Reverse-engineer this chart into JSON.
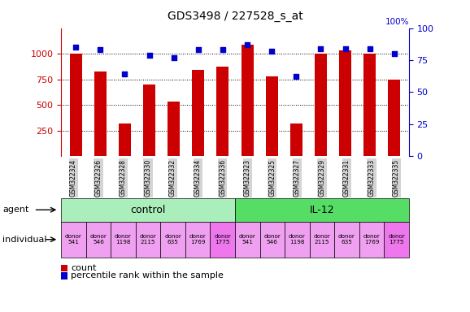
{
  "title": "GDS3498 / 227528_s_at",
  "samples": [
    "GSM322324",
    "GSM322326",
    "GSM322328",
    "GSM322330",
    "GSM322332",
    "GSM322334",
    "GSM322336",
    "GSM322323",
    "GSM322325",
    "GSM322327",
    "GSM322329",
    "GSM322331",
    "GSM322333",
    "GSM322335"
  ],
  "counts": [
    1000,
    825,
    320,
    700,
    535,
    840,
    870,
    1090,
    780,
    320,
    1000,
    1030,
    1000,
    750
  ],
  "percentile_ranks": [
    85,
    83,
    64,
    79,
    77,
    83,
    83,
    87,
    82,
    62,
    84,
    84,
    84,
    80
  ],
  "ylim_left": [
    0,
    1250
  ],
  "ylim_right": [
    0,
    100
  ],
  "yticks_left": [
    250,
    500,
    750,
    1000
  ],
  "yticks_right": [
    0,
    25,
    50,
    75,
    100
  ],
  "bar_color": "#cc0000",
  "dot_color": "#0000cc",
  "agent_control_color": "#aaeebb",
  "agent_il12_color": "#55dd66",
  "individual_control_colors": [
    "#f0a0f0",
    "#f0a0f0",
    "#f0a0f0",
    "#f0a0f0",
    "#f0a0f0",
    "#f0a0f0",
    "#ee77ee"
  ],
  "individual_il12_colors": [
    "#f0a0f0",
    "#f0a0f0",
    "#f0a0f0",
    "#f0a0f0",
    "#f0a0f0",
    "#f0a0f0",
    "#ee77ee"
  ],
  "donors": [
    "donor\n541",
    "donor\n546",
    "donor\n1198",
    "donor\n2115",
    "donor\n635",
    "donor\n1769",
    "donor\n1775"
  ],
  "legend_count": "count",
  "legend_percentile": "percentile rank within the sample",
  "left_axis_color": "#cc0000",
  "right_axis_color": "#0000cc",
  "tick_bg_color": "#d4d4d4"
}
